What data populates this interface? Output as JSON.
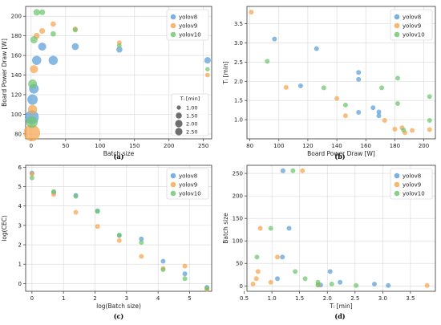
{
  "colors": {
    "yolov8": "#5a9ed8",
    "yolov9": "#f6a44f",
    "yolov10": "#6cc56c"
  },
  "chart_data": [
    {
      "type": "scatter",
      "panel": "(a)",
      "xlabel": "Batch size",
      "ylabel": "Board Power Draw [W]",
      "xlim": [
        -8,
        262
      ],
      "ylim": [
        75,
        210
      ],
      "xticks": [
        0,
        50,
        100,
        150,
        200,
        250
      ],
      "yticks": [
        80,
        100,
        120,
        140,
        160,
        180,
        200
      ],
      "legend_position": "upper-right",
      "size_legend": {
        "title": "Tᵢ [min]",
        "values": [
          "1.00",
          "1.50",
          "2.00",
          "2.50"
        ],
        "position": "lower-right"
      },
      "series": [
        {
          "name": "yolov8",
          "points": [
            [
              1,
              97,
              3.1
            ],
            [
              2,
              115,
              2.2
            ],
            [
              4,
              126,
              2.0
            ],
            [
              8,
              155,
              1.9
            ],
            [
              16,
              169,
              1.6
            ],
            [
              32,
              155,
              1.9
            ],
            [
              64,
              169,
              1.3
            ],
            [
              128,
              166,
              1.1
            ],
            [
              256,
              155,
              1.2
            ]
          ]
        },
        {
          "name": "yolov9",
          "points": [
            [
              1,
              81,
              3.8
            ],
            [
              2,
              105,
              1.9
            ],
            [
              4,
              146,
              1.6
            ],
            [
              8,
              180,
              1.1
            ],
            [
              16,
              185,
              1.0
            ],
            [
              32,
              192,
              0.9
            ],
            [
              64,
              187,
              0.8
            ],
            [
              128,
              173,
              0.75
            ],
            [
              256,
              140,
              0.7
            ]
          ]
        },
        {
          "name": "yolov10",
          "points": [
            [
              1,
              92,
              2.5
            ],
            [
              2,
              131,
              1.8
            ],
            [
              4,
              176,
              1.4
            ],
            [
              8,
              204,
              1.2
            ],
            [
              16,
              204,
              1.0
            ],
            [
              32,
              182,
              0.9
            ],
            [
              64,
              186,
              0.8
            ],
            [
              128,
              170,
              0.7
            ],
            [
              256,
              146,
              0.65
            ]
          ]
        }
      ]
    },
    {
      "type": "scatter",
      "panel": "(b)",
      "xlabel": "Board Power Draw [W]",
      "ylabel": "Tᵢ [min]",
      "xlim": [
        78,
        208
      ],
      "ylim": [
        0.5,
        3.95
      ],
      "xticks": [
        80,
        100,
        120,
        140,
        160,
        180,
        200
      ],
      "yticks": [
        1.0,
        1.5,
        2.0,
        2.5,
        3.0,
        3.5
      ],
      "legend_position": "upper-right",
      "series": [
        {
          "name": "yolov8",
          "points": [
            [
              97,
              3.1
            ],
            [
              115,
              1.88
            ],
            [
              126,
              2.85
            ],
            [
              155,
              2.23
            ],
            [
              155,
              2.05
            ],
            [
              155,
              1.19
            ],
            [
              165,
              1.31
            ],
            [
              169,
              1.1
            ],
            [
              169,
              1.2
            ]
          ]
        },
        {
          "name": "yolov9",
          "points": [
            [
              81,
              3.8
            ],
            [
              105,
              1.84
            ],
            [
              146,
              1.1
            ],
            [
              140,
              1.55
            ],
            [
              173,
              0.98
            ],
            [
              180,
              0.75
            ],
            [
              185,
              0.79
            ],
            [
              187,
              0.66
            ],
            [
              192,
              0.72
            ],
            [
              204,
              0.74
            ]
          ]
        },
        {
          "name": "yolov10",
          "points": [
            [
              92,
              2.52
            ],
            [
              131,
              1.83
            ],
            [
              146,
              1.38
            ],
            [
              171,
              1.83
            ],
            [
              182,
              2.08
            ],
            [
              182,
              1.42
            ],
            [
              186,
              0.73
            ],
            [
              204,
              1.6
            ],
            [
              204,
              0.98
            ]
          ]
        }
      ]
    },
    {
      "type": "scatter",
      "panel": "(c)",
      "xlabel": "log(Batch size)",
      "ylabel": "log(CEC)",
      "xlim": [
        -0.2,
        5.7
      ],
      "ylim": [
        -0.4,
        6.1
      ],
      "xticks": [
        0,
        1,
        2,
        3,
        4,
        5
      ],
      "yticks": [
        0,
        1,
        2,
        3,
        4,
        5,
        6
      ],
      "legend_position": "upper-right",
      "series": [
        {
          "name": "yolov8",
          "points": [
            [
              0,
              5.7
            ],
            [
              0.69,
              4.7
            ],
            [
              1.39,
              4.55
            ],
            [
              2.08,
              3.75
            ],
            [
              2.77,
              2.48
            ],
            [
              3.47,
              2.3
            ],
            [
              4.16,
              1.15
            ],
            [
              4.85,
              0.5
            ],
            [
              5.55,
              -0.2
            ]
          ]
        },
        {
          "name": "yolov9",
          "points": [
            [
              0,
              5.65
            ],
            [
              0.69,
              4.6
            ],
            [
              1.39,
              3.68
            ],
            [
              2.08,
              2.95
            ],
            [
              2.77,
              2.22
            ],
            [
              3.47,
              1.4
            ],
            [
              4.16,
              0.78
            ],
            [
              4.85,
              0.9
            ],
            [
              5.55,
              -0.3
            ]
          ]
        },
        {
          "name": "yolov10",
          "points": [
            [
              0,
              5.45
            ],
            [
              0.69,
              4.75
            ],
            [
              1.39,
              4.5
            ],
            [
              2.08,
              3.72
            ],
            [
              2.77,
              2.5
            ],
            [
              3.47,
              2.12
            ],
            [
              4.16,
              0.72
            ],
            [
              4.85,
              0.25
            ],
            [
              5.55,
              -0.25
            ]
          ]
        }
      ]
    },
    {
      "type": "scatter",
      "panel": "(d)",
      "xlabel": "Tᵢ [min]",
      "ylabel": "Batch size",
      "xlim": [
        0.55,
        3.95
      ],
      "ylim": [
        -12,
        268
      ],
      "xticks": [
        0.5,
        1.0,
        1.5,
        2.0,
        2.5,
        3.0,
        3.5
      ],
      "yticks": [
        0,
        50,
        100,
        150,
        200,
        250
      ],
      "legend_position": "upper-right",
      "series": [
        {
          "name": "yolov8",
          "points": [
            [
              3.1,
              1
            ],
            [
              2.85,
              4
            ],
            [
              2.23,
              8
            ],
            [
              2.05,
              32
            ],
            [
              1.88,
              2
            ],
            [
              1.31,
              128
            ],
            [
              1.2,
              256
            ],
            [
              1.19,
              64
            ],
            [
              1.1,
              16
            ]
          ]
        },
        {
          "name": "yolov9",
          "points": [
            [
              3.8,
              1
            ],
            [
              1.84,
              2
            ],
            [
              1.55,
              256
            ],
            [
              1.1,
              64
            ],
            [
              0.98,
              8
            ],
            [
              0.79,
              128
            ],
            [
              0.75,
              32
            ],
            [
              0.72,
              16
            ],
            [
              0.66,
              4
            ]
          ]
        },
        {
          "name": "yolov10",
          "points": [
            [
              2.52,
              1
            ],
            [
              2.08,
              4
            ],
            [
              1.83,
              2
            ],
            [
              1.83,
              8
            ],
            [
              1.6,
              16
            ],
            [
              1.42,
              32
            ],
            [
              1.38,
              256
            ],
            [
              0.98,
              128
            ],
            [
              0.73,
              64
            ]
          ]
        }
      ]
    }
  ]
}
